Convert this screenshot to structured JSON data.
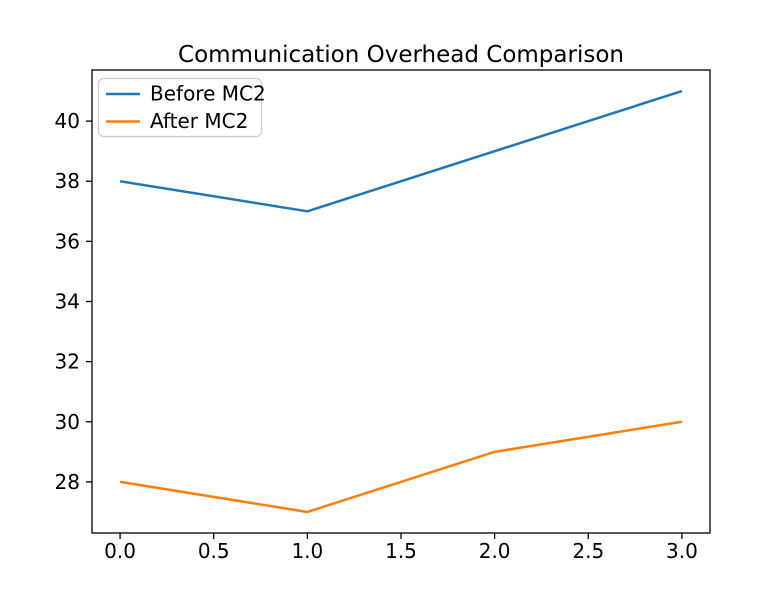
{
  "figure": {
    "background": "#ffffff"
  },
  "chart_data": {
    "type": "line",
    "title": "Communication Overhead Comparison",
    "x": [
      0,
      1,
      2,
      3
    ],
    "series": [
      {
        "name": "Before MC2",
        "color": "#1f77b4",
        "values": [
          38,
          37,
          39,
          41
        ]
      },
      {
        "name": "After MC2",
        "color": "#ff7f0e",
        "values": [
          28,
          27,
          29,
          30
        ]
      }
    ],
    "xlim": [
      -0.15,
      3.15
    ],
    "ylim": [
      26.3,
      41.7
    ],
    "xticks": [
      0.0,
      0.5,
      1.0,
      1.5,
      2.0,
      2.5,
      3.0
    ],
    "xtick_labels": [
      "0.0",
      "0.5",
      "1.0",
      "1.5",
      "2.0",
      "2.5",
      "3.0"
    ],
    "yticks": [
      28,
      30,
      32,
      34,
      36,
      38,
      40
    ],
    "ytick_labels": [
      "28",
      "30",
      "32",
      "34",
      "36",
      "38",
      "40"
    ],
    "grid": false,
    "legend_position": "upper-left",
    "axis_color": "#000000",
    "line_width": 2.5,
    "legend_border_color": "#cccccc",
    "legend_background": "rgba(255,255,255,0.8)"
  }
}
